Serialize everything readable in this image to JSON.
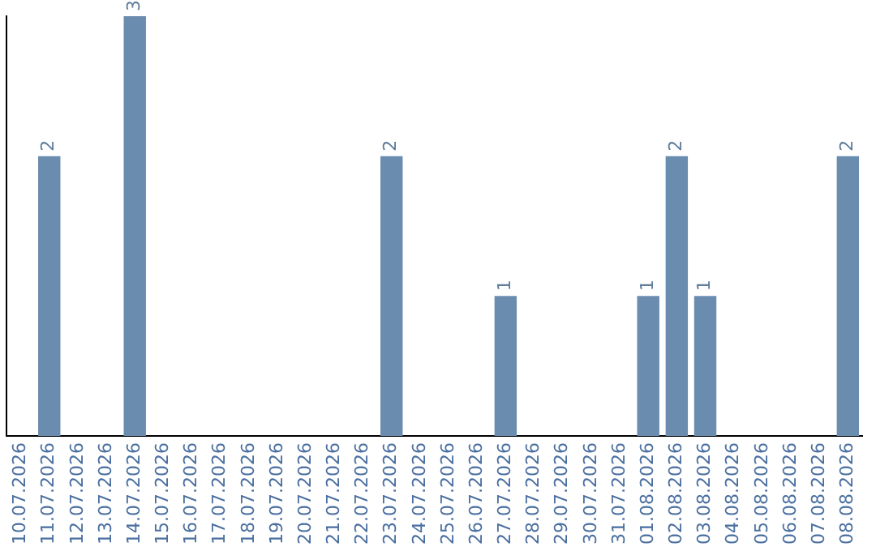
{
  "chart_data": {
    "type": "bar",
    "categories": [
      "10.07.2026",
      "11.07.2026",
      "12.07.2026",
      "13.07.2026",
      "14.07.2026",
      "15.07.2026",
      "16.07.2026",
      "17.07.2026",
      "18.07.2026",
      "19.07.2026",
      "20.07.2026",
      "21.07.2026",
      "22.07.2026",
      "23.07.2026",
      "24.07.2026",
      "25.07.2026",
      "26.07.2026",
      "27.07.2026",
      "28.07.2026",
      "29.07.2026",
      "30.07.2026",
      "31.07.2026",
      "01.08.2026",
      "02.08.2026",
      "03.08.2026",
      "04.08.2026",
      "05.08.2026",
      "06.08.2026",
      "07.08.2026",
      "08.08.2026"
    ],
    "values": [
      null,
      2,
      null,
      null,
      3,
      null,
      null,
      null,
      null,
      null,
      null,
      null,
      null,
      2,
      null,
      null,
      null,
      1,
      null,
      null,
      null,
      null,
      1,
      2,
      1,
      null,
      null,
      null,
      null,
      2
    ],
    "value_labels": [
      null,
      "2",
      null,
      null,
      "3",
      null,
      null,
      null,
      null,
      null,
      null,
      null,
      null,
      "2",
      null,
      null,
      null,
      "1",
      null,
      null,
      null,
      null,
      "1",
      "2",
      "1",
      null,
      null,
      null,
      null,
      "2"
    ],
    "color": "#6a8caf",
    "grid": false,
    "legend": false,
    "tick_labels": "x"
  }
}
